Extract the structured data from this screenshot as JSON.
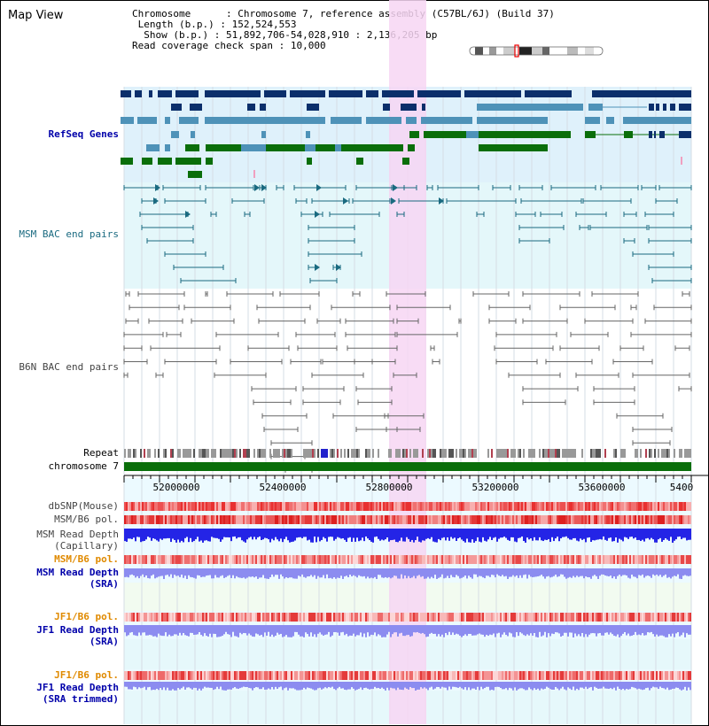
{
  "title": "Map View",
  "info": {
    "chromosome_label": "Chromosome",
    "chromosome_value": "Chromosome 7, reference assembly (C57BL/6J) (Build 37)",
    "length_label": "Length (b.p.)",
    "length_value": "152,524,553",
    "show_label": "Show (b.p.)",
    "show_value": "51,892,706-54,028,910 : 2,136,205 bp",
    "coverage_label": "Read coverage check span",
    "coverage_value": "10,000"
  },
  "tracks": {
    "refseq": "RefSeq Genes",
    "msm_bac": "MSM BAC end pairs",
    "b6n_bac": "B6N BAC end pairs",
    "repeat": "Repeat",
    "chromosome": "chromosome 7",
    "dbsnp": "dbSNP(Mouse)",
    "msm_b6_pol_1": "MSM/B6 pol.",
    "msm_read_depth_cap_1": "MSM Read Depth",
    "msm_read_depth_cap_2": "(Capillary)",
    "msm_b6_pol_2": "MSM/B6 pol.",
    "msm_read_depth_sra_1": "MSM Read Depth",
    "msm_read_depth_sra_2": "(SRA)",
    "jf1_b6_pol_1": "JF1/B6 pol.",
    "jf1_read_depth_sra_1": "JF1 Read Depth",
    "jf1_read_depth_sra_2": "(SRA)",
    "jf1_b6_pol_2": "JF1/B6 pol.",
    "jf1_read_depth_trim_1": "JF1 Read Depth",
    "jf1_read_depth_trim_2": "(SRA trimmed)"
  },
  "axis": {
    "ticks": [
      "52000000",
      "52400000",
      "52800000",
      "53200000",
      "53600000",
      "5400"
    ]
  },
  "colors": {
    "refseq_bg": "#dff1fb",
    "msm_bg": "#e4f7fa",
    "highlight": "#f7d6f3",
    "gene_dark": "#0b2f6b",
    "gene_mid": "#4e92b8",
    "gene_green": "#0a6e0a",
    "bac_teal": "#1a6a80",
    "bac_grey": "#666666",
    "chromosome_bar": "#0a6e0a",
    "depth_blue": "#2424e6",
    "depth_lavender": "#8c8cf0"
  }
}
